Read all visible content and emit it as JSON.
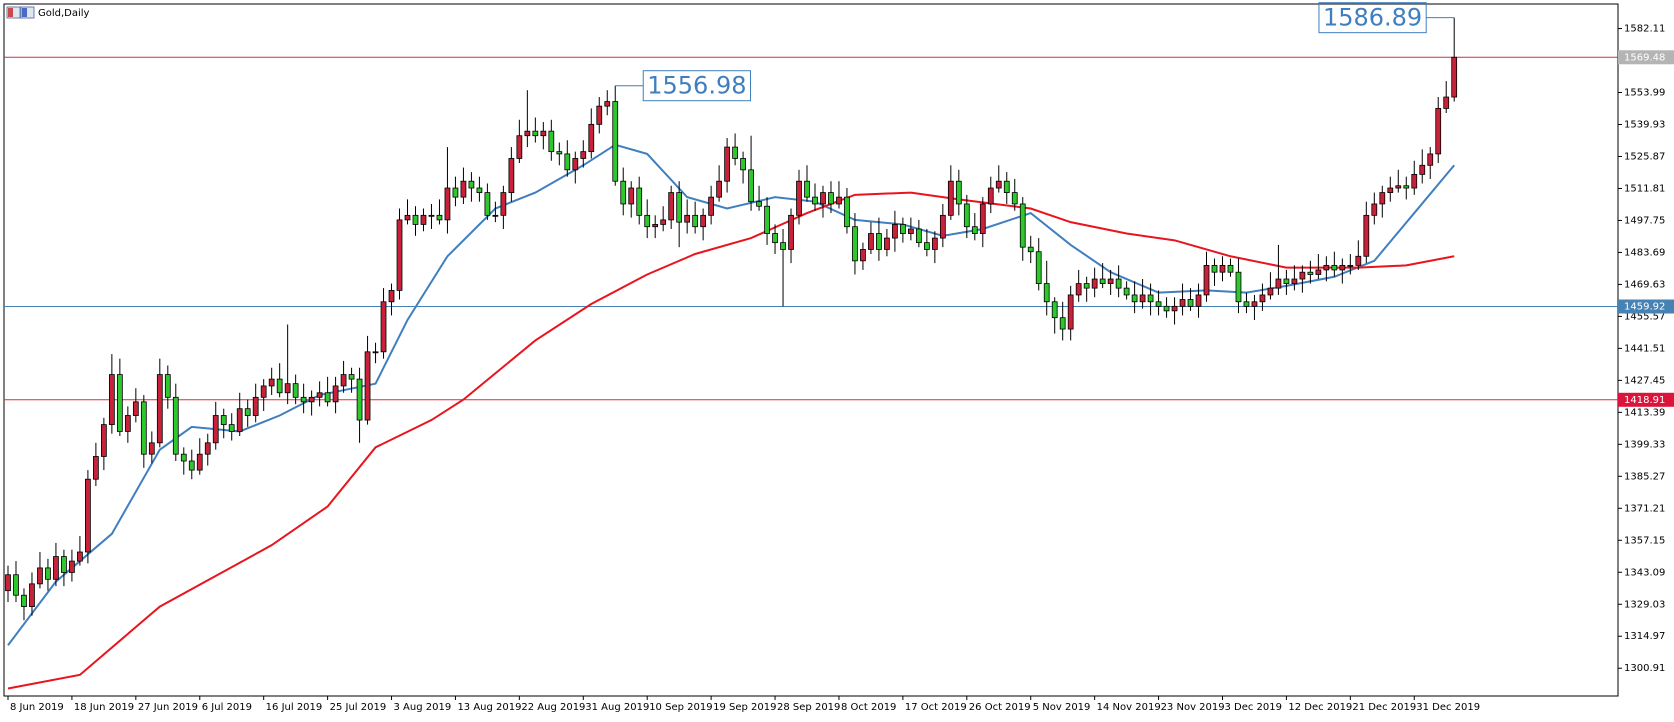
{
  "chart_data": {
    "type": "candlestick",
    "title": "Gold,Daily",
    "up_color": "#c8223a",
    "down_color": "#2ec82e",
    "open": [
      1335,
      1342,
      1333,
      1328,
      1338,
      1345,
      1340,
      1350,
      1343,
      1348,
      1352,
      1384,
      1394,
      1408,
      1430,
      1405,
      1412,
      1418,
      1395,
      1400,
      1430,
      1420,
      1395,
      1392,
      1388,
      1395,
      1400,
      1412,
      1408,
      1405,
      1415,
      1412,
      1420,
      1425,
      1428,
      1422,
      1426,
      1420,
      1418,
      1420,
      1422,
      1418,
      1425,
      1430,
      1428,
      1410,
      1440,
      1440,
      1462,
      1467,
      1498,
      1500,
      1496,
      1500,
      1500,
      1498,
      1512,
      1508,
      1515,
      1512,
      1510,
      1500,
      1500,
      1510,
      1525,
      1535,
      1537,
      1535,
      1537,
      1528,
      1527,
      1520,
      1525,
      1528,
      1540,
      1548,
      1550,
      1515,
      1505,
      1512,
      1500,
      1495,
      1496,
      1498,
      1510,
      1497,
      1500,
      1495,
      1500,
      1508,
      1515,
      1530,
      1525,
      1520,
      1506,
      1504,
      1492,
      1488,
      1485,
      1500,
      1515,
      1508,
      1505,
      1510,
      1505,
      1508,
      1495,
      1480,
      1485,
      1492,
      1485,
      1490,
      1496,
      1492,
      1494,
      1488,
      1485,
      1490,
      1500,
      1515,
      1505,
      1495,
      1492,
      1505,
      1512,
      1515,
      1510,
      1505,
      1486,
      1484,
      1470,
      1462,
      1455,
      1450,
      1465,
      1470,
      1468,
      1472,
      1470,
      1472,
      1468,
      1465,
      1462,
      1465,
      1462,
      1460,
      1458,
      1460,
      1463,
      1460,
      1465,
      1478,
      1475,
      1478,
      1475,
      1462,
      1460,
      1462,
      1465,
      1468,
      1472,
      1470,
      1472,
      1475,
      1474,
      1476,
      1478,
      1476,
      1478,
      1478,
      1482,
      1500,
      1505,
      1510,
      1512,
      1513,
      1512,
      1518,
      1522,
      1527,
      1547,
      1552
    ],
    "high": [
      1346,
      1348,
      1336,
      1343,
      1352,
      1349,
      1356,
      1353,
      1353,
      1359,
      1388,
      1400,
      1411,
      1439,
      1437,
      1416,
      1424,
      1421,
      1405,
      1437,
      1434,
      1426,
      1398,
      1397,
      1402,
      1404,
      1418,
      1415,
      1413,
      1422,
      1419,
      1426,
      1428,
      1433,
      1435,
      1452,
      1430,
      1426,
      1423,
      1427,
      1429,
      1429,
      1436,
      1433,
      1433,
      1447,
      1444,
      1468,
      1470,
      1503,
      1507,
      1504,
      1503,
      1505,
      1507,
      1530,
      1517,
      1521,
      1519,
      1517,
      1514,
      1506,
      1513,
      1530,
      1542,
      1555,
      1543,
      1541,
      1542,
      1532,
      1533,
      1528,
      1533,
      1547,
      1552,
      1555,
      1556.98,
      1521,
      1515,
      1517,
      1507,
      1500,
      1504,
      1513,
      1515,
      1507,
      1506,
      1503,
      1513,
      1522,
      1534,
      1536,
      1528,
      1535,
      1513,
      1508,
      1496,
      1494,
      1503,
      1520,
      1522,
      1514,
      1513,
      1515,
      1515,
      1512,
      1501,
      1488,
      1497,
      1499,
      1494,
      1502,
      1499,
      1499,
      1498,
      1494,
      1493,
      1505,
      1522,
      1520,
      1509,
      1501,
      1508,
      1517,
      1522,
      1519,
      1516,
      1508,
      1491,
      1490,
      1480,
      1464,
      1462,
      1469,
      1476,
      1473,
      1477,
      1479,
      1476,
      1478,
      1471,
      1471,
      1472,
      1470,
      1467,
      1464,
      1464,
      1470,
      1468,
      1470,
      1484,
      1481,
      1482,
      1481,
      1481,
      1466,
      1465,
      1470,
      1475,
      1487,
      1476,
      1478,
      1478,
      1480,
      1483,
      1482,
      1484,
      1481,
      1483,
      1489,
      1506,
      1510,
      1513,
      1517,
      1520,
      1517,
      1524,
      1529,
      1530,
      1552,
      1559,
      1586.89
    ],
    "low": [
      1330,
      1330,
      1322,
      1324,
      1336,
      1335,
      1337,
      1337,
      1339,
      1346,
      1347,
      1381,
      1388,
      1404,
      1403,
      1400,
      1409,
      1389,
      1391,
      1398,
      1415,
      1392,
      1386,
      1384,
      1386,
      1390,
      1397,
      1402,
      1401,
      1403,
      1407,
      1409,
      1414,
      1421,
      1420,
      1417,
      1417,
      1413,
      1412,
      1416,
      1416,
      1413,
      1422,
      1422,
      1400,
      1408,
      1435,
      1437,
      1456,
      1463,
      1496,
      1491,
      1493,
      1494,
      1496,
      1492,
      1504,
      1505,
      1506,
      1506,
      1498,
      1497,
      1494,
      1506,
      1523,
      1530,
      1532,
      1529,
      1524,
      1522,
      1517,
      1514,
      1521,
      1525,
      1536,
      1544,
      1513,
      1500,
      1499,
      1496,
      1490,
      1490,
      1493,
      1494,
      1486,
      1492,
      1492,
      1489,
      1496,
      1506,
      1510,
      1522,
      1514,
      1502,
      1502,
      1487,
      1483,
      1460,
      1479,
      1496,
      1506,
      1502,
      1499,
      1501,
      1503,
      1492,
      1474,
      1476,
      1483,
      1480,
      1482,
      1484,
      1488,
      1489,
      1486,
      1482,
      1479,
      1486,
      1498,
      1500,
      1490,
      1489,
      1486,
      1501,
      1510,
      1505,
      1502,
      1480,
      1479,
      1467,
      1456,
      1448,
      1445,
      1445,
      1462,
      1462,
      1464,
      1468,
      1465,
      1464,
      1463,
      1457,
      1459,
      1456,
      1456,
      1455,
      1452,
      1456,
      1458,
      1455,
      1462,
      1469,
      1471,
      1473,
      1457,
      1457,
      1454,
      1458,
      1463,
      1465,
      1465,
      1467,
      1466,
      1470,
      1472,
      1471,
      1473,
      1470,
      1474,
      1476,
      1479,
      1496,
      1499,
      1506,
      1510,
      1507,
      1509,
      1514,
      1516,
      1523,
      1545,
      1550
    ],
    "close": [
      1342,
      1333,
      1328,
      1338,
      1345,
      1340,
      1350,
      1343,
      1348,
      1352,
      1384,
      1394,
      1408,
      1430,
      1405,
      1412,
      1418,
      1395,
      1400,
      1430,
      1420,
      1395,
      1392,
      1388,
      1395,
      1400,
      1412,
      1408,
      1405,
      1415,
      1412,
      1420,
      1425,
      1428,
      1422,
      1426,
      1420,
      1418,
      1420,
      1422,
      1418,
      1425,
      1430,
      1428,
      1410,
      1440,
      1440,
      1462,
      1467,
      1498,
      1500,
      1496,
      1500,
      1500,
      1498,
      1512,
      1508,
      1515,
      1512,
      1510,
      1500,
      1500,
      1510,
      1525,
      1535,
      1537,
      1535,
      1537,
      1528,
      1527,
      1520,
      1525,
      1528,
      1540,
      1548,
      1550,
      1515,
      1505,
      1512,
      1500,
      1495,
      1496,
      1498,
      1510,
      1497,
      1500,
      1495,
      1500,
      1508,
      1515,
      1530,
      1525,
      1520,
      1506,
      1504,
      1492,
      1488,
      1485,
      1500,
      1515,
      1508,
      1505,
      1510,
      1505,
      1508,
      1495,
      1480,
      1485,
      1492,
      1485,
      1490,
      1496,
      1492,
      1494,
      1488,
      1485,
      1490,
      1500,
      1515,
      1505,
      1495,
      1492,
      1505,
      1512,
      1515,
      1510,
      1505,
      1486,
      1484,
      1470,
      1462,
      1455,
      1450,
      1465,
      1470,
      1468,
      1472,
      1470,
      1472,
      1468,
      1465,
      1462,
      1465,
      1462,
      1460,
      1458,
      1460,
      1463,
      1460,
      1465,
      1478,
      1475,
      1478,
      1475,
      1462,
      1460,
      1462,
      1465,
      1468,
      1472,
      1470,
      1472,
      1475,
      1474,
      1476,
      1478,
      1476,
      1478,
      1478,
      1482,
      1500,
      1505,
      1510,
      1512,
      1513,
      1512,
      1518,
      1522,
      1527,
      1547,
      1552,
      1569.48
    ],
    "moving_averages": [
      {
        "color": "#3f7fbf",
        "x": [
          0,
          6,
          13,
          19,
          23,
          29,
          34,
          39,
          46,
          50,
          55,
          61,
          66,
          72,
          76,
          80,
          85,
          90,
          96,
          101,
          106,
          112,
          117,
          122,
          128,
          133,
          138,
          144,
          150,
          155,
          160,
          166,
          171,
          176,
          181
        ],
        "values": [
          1311,
          1339,
          1360,
          1397,
          1407,
          1405,
          1412,
          1421,
          1426,
          1454,
          1482,
          1503,
          1510,
          1522,
          1531,
          1527,
          1508,
          1503,
          1508,
          1506,
          1498,
          1496,
          1491,
          1494,
          1501,
          1487,
          1475,
          1466,
          1467,
          1466,
          1469,
          1473,
          1480,
          1501,
          1522
        ]
      },
      {
        "color": "#e8141e",
        "x": [
          0,
          9,
          19,
          33,
          40,
          46,
          53,
          57,
          66,
          73,
          80,
          86,
          93,
          100,
          106,
          113,
          119,
          128,
          133,
          140,
          146,
          153,
          160,
          169,
          175,
          181
        ],
        "values": [
          1292,
          1298,
          1328,
          1355,
          1372,
          1398,
          1410,
          1419,
          1445,
          1461,
          1474,
          1483,
          1490,
          1501,
          1509,
          1510,
          1507,
          1503,
          1497,
          1492,
          1489,
          1482,
          1477,
          1477,
          1478,
          1482
        ]
      }
    ],
    "price_lines": [
      {
        "value": 1569.48,
        "color": "#c83246",
        "label_color": "#b4b4b4"
      },
      {
        "value": 1459.92,
        "color": "#4682b4",
        "label_color": "#4682b4"
      },
      {
        "value": 1418.91,
        "color": "#e6283c",
        "label_color": "#dc143c"
      }
    ],
    "annotations": [
      {
        "x": 76,
        "y": 1556.98,
        "side": "right"
      },
      {
        "x": 181,
        "y": 1586.89,
        "side": "left"
      }
    ],
    "xlim": [
      -0.5,
      201.5
    ],
    "ylim": [
      1288.7,
      1592.9
    ],
    "yticks": [
      1300.91,
      1314.97,
      1329.03,
      1343.09,
      1357.15,
      1371.21,
      1385.27,
      1399.33,
      1413.39,
      1427.45,
      1441.51,
      1455.57,
      1469.63,
      1483.69,
      1497.75,
      1511.81,
      1525.87,
      1539.93,
      1553.99,
      1568.05,
      1582.11
    ],
    "xticks": [
      {
        "value": 0,
        "label": "8 Jun 2019"
      },
      {
        "value": 8,
        "label": "18 Jun 2019"
      },
      {
        "value": 16,
        "label": "27 Jun 2019"
      },
      {
        "value": 24,
        "label": "6 Jul 2019"
      },
      {
        "value": 32,
        "label": "16 Jul 2019"
      },
      {
        "value": 40,
        "label": "25 Jul 2019"
      },
      {
        "value": 48,
        "label": "3 Aug 2019"
      },
      {
        "value": 56,
        "label": "13 Aug 2019"
      },
      {
        "value": 64,
        "label": "22 Aug 2019"
      },
      {
        "value": 72,
        "label": "31 Aug 2019"
      },
      {
        "value": 80,
        "label": "10 Sep 2019"
      },
      {
        "value": 88,
        "label": "19 Sep 2019"
      },
      {
        "value": 96,
        "label": "28 Sep 2019"
      },
      {
        "value": 104,
        "label": "8 Oct 2019"
      },
      {
        "value": 112,
        "label": "17 Oct 2019"
      },
      {
        "value": 120,
        "label": "26 Oct 2019"
      },
      {
        "value": 128,
        "label": "5 Nov 2019"
      },
      {
        "value": 136,
        "label": "14 Nov 2019"
      },
      {
        "value": 144,
        "label": "23 Nov 2019"
      },
      {
        "value": 152,
        "label": "3 Dec 2019"
      },
      {
        "value": 160,
        "label": "12 Dec 2019"
      },
      {
        "value": 168,
        "label": "21 Dec 2019"
      },
      {
        "value": 176,
        "label": "31 Dec 2019"
      }
    ]
  }
}
